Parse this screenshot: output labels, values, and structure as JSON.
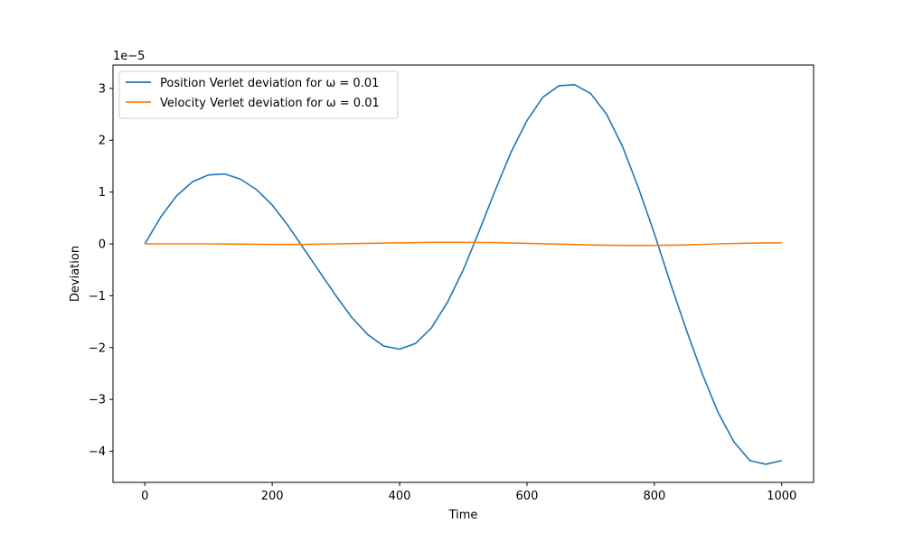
{
  "chart_data": {
    "type": "line",
    "title": "",
    "xlabel": "Time",
    "ylabel": "Deviation",
    "y_offset_label": "1e−5",
    "xlim": [
      -50,
      1050
    ],
    "ylim": [
      -4.6e-05,
      3.45e-05
    ],
    "x_ticks": [
      0,
      200,
      400,
      600,
      800,
      1000
    ],
    "x_tick_labels": [
      "0",
      "200",
      "400",
      "600",
      "800",
      "1000"
    ],
    "y_ticks": [
      3e-05,
      2e-05,
      1e-05,
      0,
      -1e-05,
      -2e-05,
      -3e-05,
      -4e-05
    ],
    "y_tick_labels": [
      "3",
      "2",
      "1",
      "0",
      "−1",
      "−2",
      "−3",
      "−4"
    ],
    "grid": false,
    "legend_position": "upper left",
    "series": [
      {
        "name": "Position Verlet deviation for ω = 0.01",
        "color": "#1f77b4",
        "x": [
          0,
          25,
          50,
          75,
          100,
          125,
          150,
          175,
          200,
          225,
          250,
          275,
          300,
          325,
          350,
          375,
          400,
          425,
          450,
          475,
          500,
          525,
          550,
          575,
          600,
          625,
          650,
          675,
          700,
          725,
          750,
          775,
          800,
          825,
          850,
          875,
          900,
          925,
          950,
          975,
          1000
        ],
        "y": [
          0,
          5.2e-06,
          9.3e-06,
          1.2e-05,
          1.33e-05,
          1.35e-05,
          1.25e-05,
          1.05e-05,
          7.5e-06,
          3.5e-06,
          -1e-06,
          -5.5e-06,
          -1e-05,
          -1.42e-05,
          -1.75e-05,
          -1.97e-05,
          -2.03e-05,
          -1.92e-05,
          -1.62e-05,
          -1.13e-05,
          -5e-06,
          2.5e-06,
          1.03e-05,
          1.77e-05,
          2.38e-05,
          2.83e-05,
          3.05e-05,
          3.07e-05,
          2.9e-05,
          2.5e-05,
          1.88e-05,
          1.08e-05,
          2e-06,
          -7.5e-06,
          -1.65e-05,
          -2.5e-05,
          -3.25e-05,
          -3.82e-05,
          -4.18e-05,
          -4.25e-05,
          -4.18e-05
        ]
      },
      {
        "name": "Velocity Verlet deviation for ω = 0.01",
        "color": "#ff7f0e",
        "x": [
          0,
          50,
          100,
          150,
          200,
          250,
          300,
          350,
          400,
          450,
          500,
          550,
          600,
          650,
          700,
          750,
          800,
          850,
          900,
          950,
          1000
        ],
        "y": [
          0,
          0,
          0,
          -5e-08,
          -1e-07,
          -1e-07,
          0,
          1e-07,
          2e-07,
          3e-07,
          3e-07,
          2.5e-07,
          1e-07,
          -5e-08,
          -2e-07,
          -3e-07,
          -3e-07,
          -2e-07,
          0,
          1.5e-07,
          2e-07
        ]
      }
    ]
  }
}
